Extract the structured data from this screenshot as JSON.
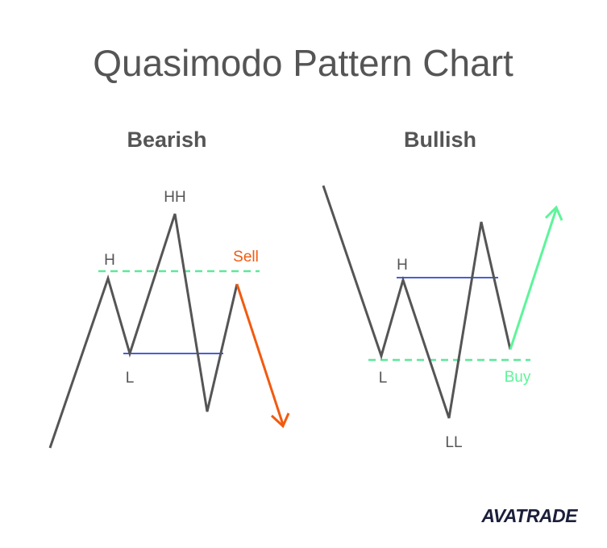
{
  "title": "Quasimodo Pattern Chart",
  "panels": [
    {
      "title": "Bearish",
      "labels": {
        "high": "H",
        "extreme": "HH",
        "low": "L"
      },
      "signal": "Sell"
    },
    {
      "title": "Bullish",
      "labels": {
        "high": "H",
        "low": "L",
        "extreme": "LL"
      },
      "signal": "Buy"
    }
  ],
  "logo": "AVATRADE"
}
